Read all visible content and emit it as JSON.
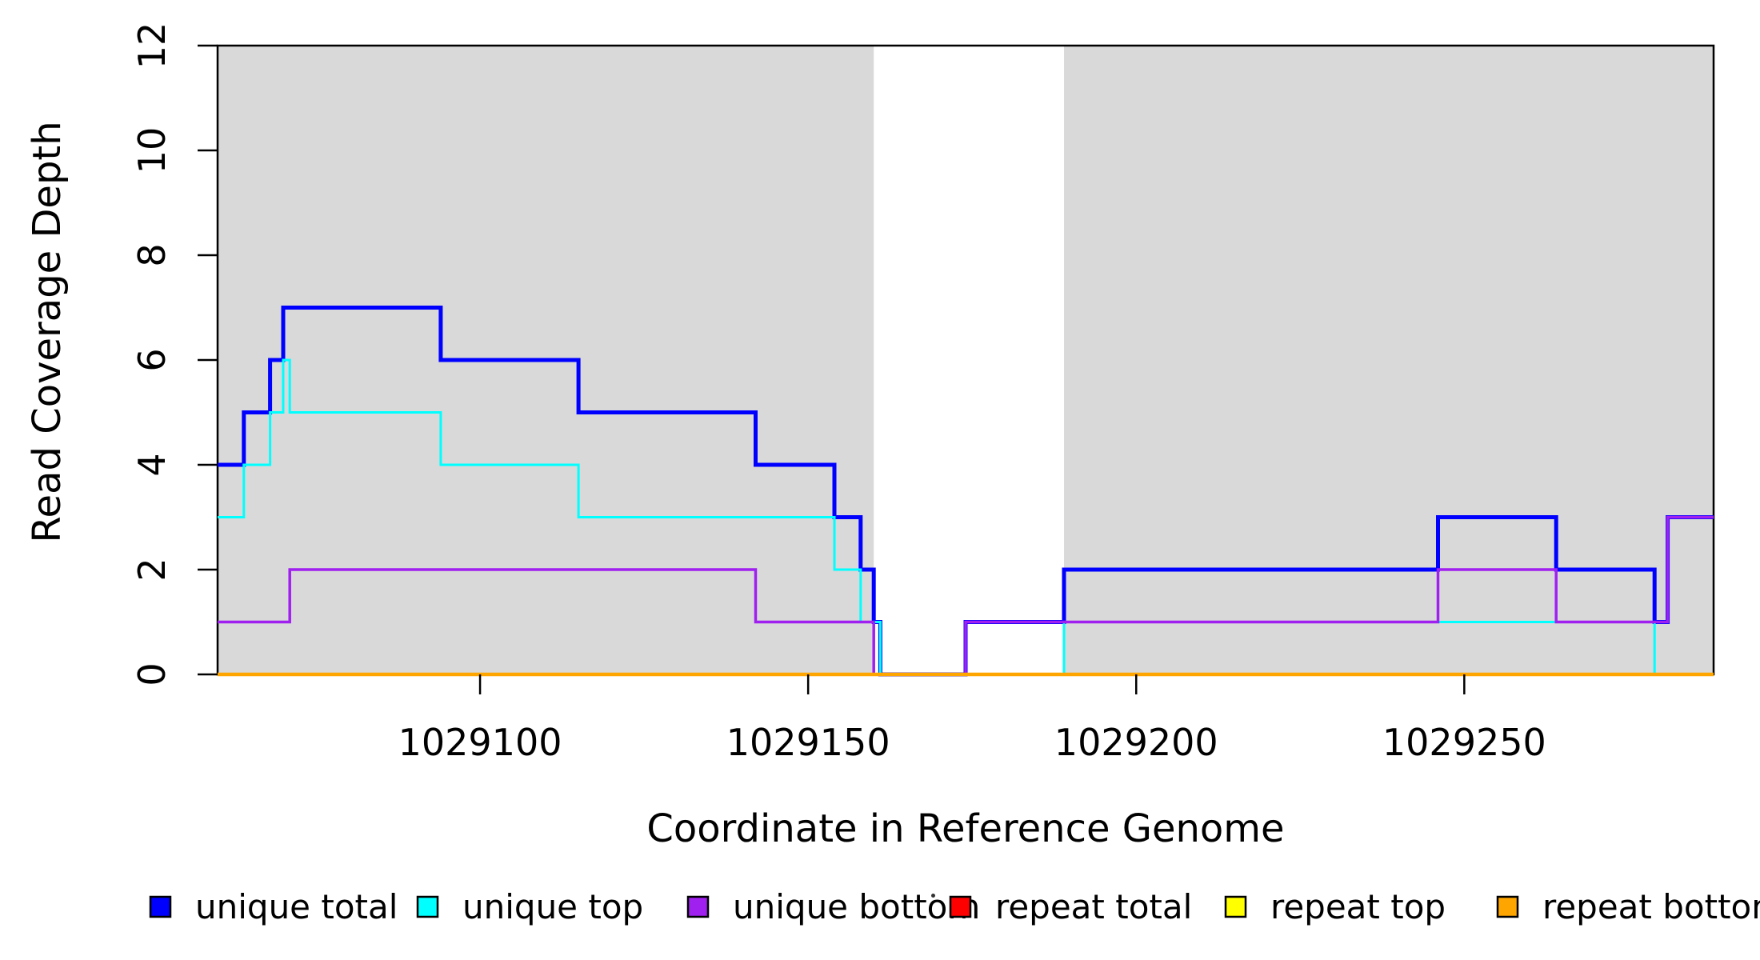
{
  "chart_data": {
    "type": "line",
    "subtype": "step-coverage",
    "title": "",
    "xlabel": "Coordinate in Reference Genome",
    "ylabel": "Read Coverage Depth",
    "xlim": [
      1029060,
      1029288
    ],
    "ylim": [
      0,
      12
    ],
    "x_ticks": [
      1029100,
      1029150,
      1029200,
      1029250
    ],
    "y_ticks": [
      0,
      2,
      4,
      6,
      8,
      10,
      12
    ],
    "grid": false,
    "plot_background": "#FFFFFF",
    "box_color": "#000000",
    "shaded_regions": [
      {
        "name": "repeat-region-1",
        "x_start": 1029060,
        "x_end": 1029160,
        "color": "#D9D9D9"
      },
      {
        "name": "repeat-region-2",
        "x_start": 1029189,
        "x_end": 1029288,
        "color": "#D9D9D9"
      }
    ],
    "series": [
      {
        "name": "unique total",
        "color": "#0000FF",
        "line_width": 5,
        "steps": [
          [
            1029060,
            4
          ],
          [
            1029064,
            5
          ],
          [
            1029068,
            6
          ],
          [
            1029070,
            7
          ],
          [
            1029094,
            6
          ],
          [
            1029115,
            5
          ],
          [
            1029142,
            4
          ],
          [
            1029154,
            3
          ],
          [
            1029158,
            2
          ],
          [
            1029160,
            1
          ],
          [
            1029161,
            0
          ],
          [
            1029174,
            1
          ],
          [
            1029189,
            2
          ],
          [
            1029246,
            3
          ],
          [
            1029264,
            2
          ],
          [
            1029279,
            1
          ],
          [
            1029281,
            3
          ]
        ]
      },
      {
        "name": "unique top",
        "color": "#00FFFF",
        "line_width": 3,
        "steps": [
          [
            1029060,
            3
          ],
          [
            1029064,
            4
          ],
          [
            1029068,
            5
          ],
          [
            1029070,
            6
          ],
          [
            1029071,
            5
          ],
          [
            1029094,
            4
          ],
          [
            1029115,
            3
          ],
          [
            1029154,
            2
          ],
          [
            1029158,
            1
          ],
          [
            1029161,
            0
          ],
          [
            1029189,
            1
          ],
          [
            1029279,
            0
          ]
        ]
      },
      {
        "name": "unique bottom",
        "color": "#A020F0",
        "line_width": 3.5,
        "steps": [
          [
            1029060,
            1
          ],
          [
            1029071,
            2
          ],
          [
            1029142,
            1
          ],
          [
            1029160,
            0
          ],
          [
            1029174,
            1
          ],
          [
            1029246,
            2
          ],
          [
            1029264,
            1
          ],
          [
            1029281,
            3
          ]
        ]
      },
      {
        "name": "repeat total",
        "color": "#FF0000",
        "line_width": 3,
        "steps": [
          [
            1029060,
            0
          ]
        ]
      },
      {
        "name": "repeat top",
        "color": "#FFFF00",
        "line_width": 3,
        "steps": [
          [
            1029060,
            0
          ]
        ]
      },
      {
        "name": "repeat bottom",
        "color": "#FFA500",
        "line_width": 4.5,
        "steps": [
          [
            1029060,
            0
          ]
        ]
      }
    ],
    "legend": {
      "position": "bottom",
      "swatch_border": "#000000",
      "items": [
        {
          "label": "unique total",
          "color": "#0000FF"
        },
        {
          "label": "unique top",
          "color": "#00FFFF"
        },
        {
          "label": "unique bottom",
          "color": "#A020F0"
        },
        {
          "label": "repeat total",
          "color": "#FF0000"
        },
        {
          "label": "repeat top",
          "color": "#FFFF00"
        },
        {
          "label": "repeat bottom",
          "color": "#FFA500"
        }
      ]
    }
  }
}
